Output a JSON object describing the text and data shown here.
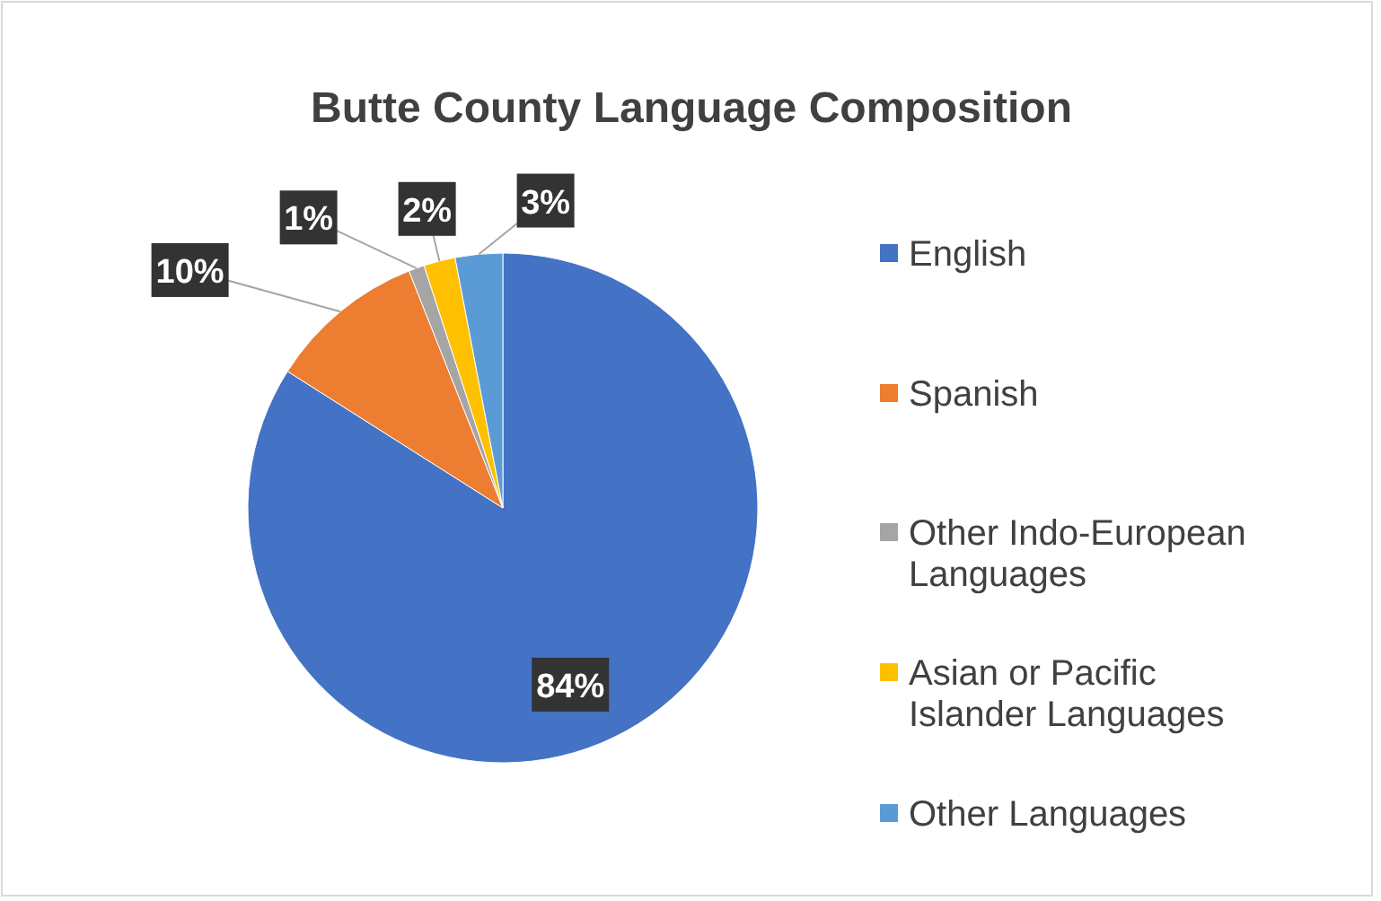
{
  "chart_data": {
    "type": "pie",
    "title": "Butte County Language Composition",
    "categories": [
      "English",
      "Spanish",
      "Other Indo-European Languages",
      "Asian or Pacific Islander Languages",
      "Other Languages"
    ],
    "values": [
      84,
      10,
      1,
      2,
      3
    ],
    "colors": [
      "#4472c4",
      "#ed7d31",
      "#a5a5a5",
      "#ffc000",
      "#5b9bd5"
    ],
    "value_labels": [
      "84%",
      "10%",
      "1%",
      "2%",
      "3%"
    ],
    "legend": "right"
  }
}
